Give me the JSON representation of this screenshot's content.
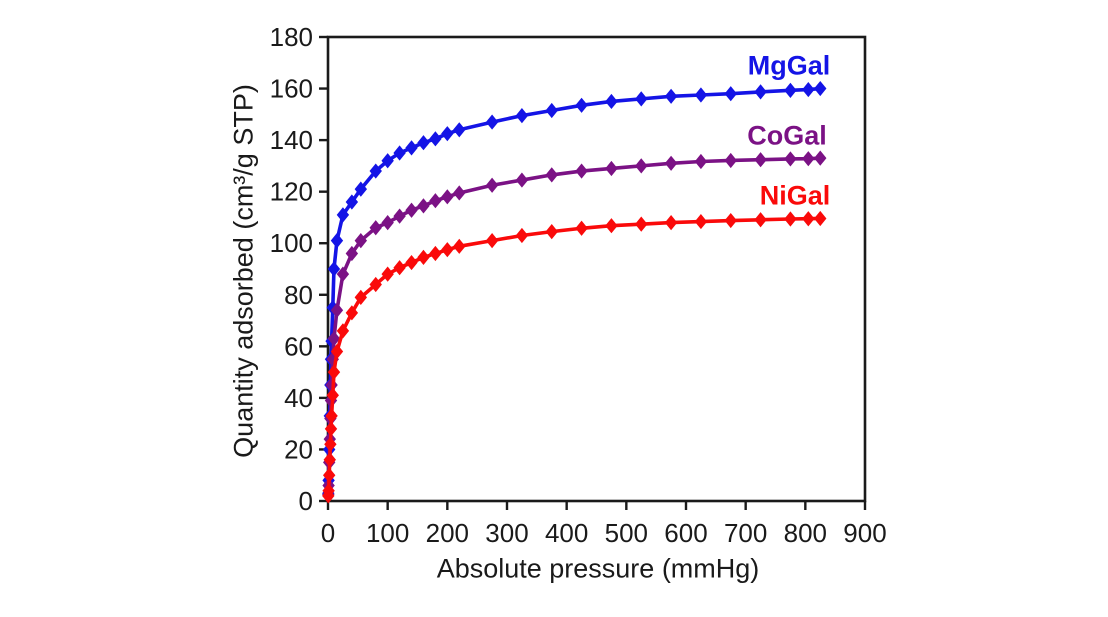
{
  "chart_data": {
    "type": "line",
    "title": "",
    "xlabel": "Absolute pressure (mmHg)",
    "ylabel": "Quantity adsorbed (cm³/g STP)",
    "xlim": [
      0,
      900
    ],
    "ylim": [
      0,
      180
    ],
    "x_ticks": [
      0,
      100,
      200,
      300,
      400,
      500,
      600,
      700,
      800,
      900
    ],
    "y_ticks": [
      0,
      20,
      40,
      60,
      80,
      100,
      120,
      140,
      160,
      180
    ],
    "grid": false,
    "legend_position": "inline-labels-above-right-end-of-curves",
    "axis_color": "#1a1a1a",
    "marker": "diamond",
    "x": [
      0.5,
      1,
      2,
      3,
      4,
      5,
      6,
      8,
      10,
      15,
      25,
      40,
      55,
      80,
      100,
      120,
      140,
      160,
      180,
      200,
      220,
      275,
      325,
      375,
      425,
      475,
      525,
      575,
      625,
      675,
      725,
      775,
      805,
      825
    ],
    "series": [
      {
        "name": "MgGal",
        "color": "#1414e6",
        "values": [
          3,
          8,
          20,
          33,
          45,
          55,
          62,
          75,
          90,
          101,
          111,
          116,
          121,
          128,
          132,
          135,
          137,
          139,
          140.5,
          142.5,
          144,
          147,
          149.5,
          151.5,
          153.5,
          155,
          156,
          157,
          157.5,
          158,
          158.7,
          159.3,
          159.6,
          160
        ]
      },
      {
        "name": "CoGal",
        "color": "#7b1285",
        "values": [
          2.5,
          6,
          15,
          24,
          32,
          39,
          45,
          55,
          63,
          74,
          88,
          96,
          101,
          106,
          108,
          110.5,
          112.8,
          114.5,
          116.5,
          118,
          119.5,
          122.5,
          124.5,
          126.5,
          128,
          129,
          130,
          131,
          131.7,
          132.1,
          132.4,
          132.7,
          132.8,
          133
        ]
      },
      {
        "name": "NiGal",
        "color": "#fa0a0a",
        "values": [
          2,
          4,
          10,
          16,
          22,
          28,
          33,
          41,
          50,
          58,
          66,
          73,
          79,
          84,
          88,
          90.5,
          92.5,
          94.5,
          96,
          97.5,
          98.8,
          101,
          103,
          104.5,
          105.8,
          106.8,
          107.4,
          108,
          108.4,
          108.8,
          109.1,
          109.4,
          109.5,
          109.6
        ]
      }
    ]
  }
}
